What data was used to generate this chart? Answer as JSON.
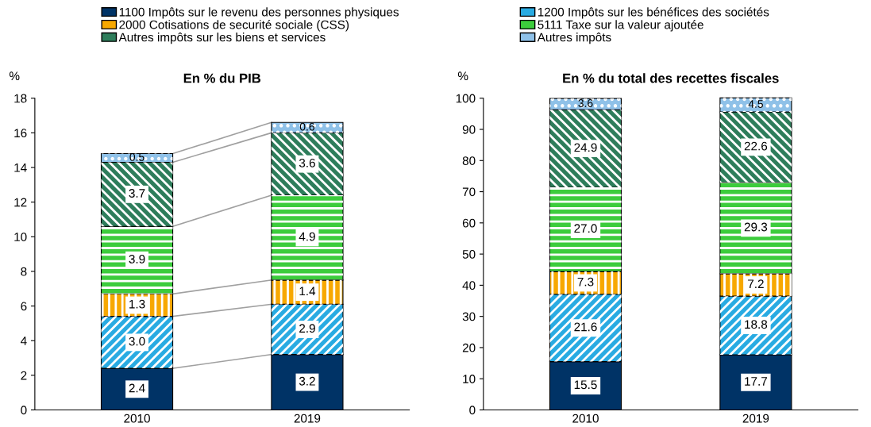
{
  "chart_data": [
    {
      "type": "bar",
      "title": "En % du PIB",
      "ylabel": "%",
      "categories": [
        "2010",
        "2019"
      ],
      "stacked": true,
      "legend": "top",
      "data_labels": true,
      "ylim": [
        0,
        18
      ],
      "yticks": [
        0,
        2,
        4,
        6,
        8,
        10,
        12,
        14,
        16,
        18
      ],
      "grid": false,
      "series": [
        {
          "name": "1100 Impôts sur le revenu des personnes physiques",
          "color": "#003366",
          "values": [
            2.4,
            3.2
          ],
          "value_labels": [
            "2.4",
            "3.2"
          ]
        },
        {
          "name": "1200 Impôts sur les bénéfices des sociétés",
          "color": "#29abe2",
          "values": [
            3.0,
            2.9
          ],
          "value_labels": [
            "3.0",
            "2.9"
          ]
        },
        {
          "name": "2000 Cotisations de securité sociale (CSS)",
          "color": "#f7a800",
          "values": [
            1.3,
            1.4
          ],
          "value_labels": [
            "1.3",
            "1.4"
          ]
        },
        {
          "name": "5111 Taxe sur la valeur ajoutée",
          "color": "#3ccc3c",
          "values": [
            3.9,
            4.9
          ],
          "value_labels": [
            "3.9",
            "4.9"
          ]
        },
        {
          "name": "Autres impôts sur les biens et services",
          "color": "#2e7d5b",
          "values": [
            3.7,
            3.6
          ],
          "value_labels": [
            "3.7",
            "3.6"
          ]
        },
        {
          "name": "Autres impôts",
          "color": "#8fc1e8",
          "values": [
            0.5,
            0.6
          ],
          "value_labels": [
            "0.5",
            "0.6"
          ]
        }
      ]
    },
    {
      "type": "bar",
      "title": "En % du total des recettes fiscales",
      "ylabel": "%",
      "categories": [
        "2010",
        "2019"
      ],
      "stacked": true,
      "data_labels": true,
      "ylim": [
        0,
        100
      ],
      "yticks": [
        0,
        10,
        20,
        30,
        40,
        50,
        60,
        70,
        80,
        90,
        100
      ],
      "grid": false,
      "series": [
        {
          "color": "#003366",
          "values": [
            15.5,
            17.7
          ],
          "value_labels": [
            "15.5",
            "17.7"
          ]
        },
        {
          "color": "#29abe2",
          "values": [
            21.6,
            18.8
          ],
          "value_labels": [
            "21.6",
            "18.8"
          ]
        },
        {
          "color": "#f7a800",
          "values": [
            7.3,
            7.2
          ],
          "value_labels": [
            "7.3",
            "7.2"
          ]
        },
        {
          "color": "#3ccc3c",
          "values": [
            27.0,
            29.3
          ],
          "value_labels": [
            "27.0",
            "29.3"
          ]
        },
        {
          "color": "#2e7d5b",
          "values": [
            24.9,
            22.6
          ],
          "value_labels": [
            "24.9",
            "22.6"
          ]
        },
        {
          "color": "#8fc1e8",
          "values": [
            3.6,
            4.5
          ],
          "value_labels": [
            "3.6",
            "4.5"
          ]
        }
      ]
    }
  ]
}
